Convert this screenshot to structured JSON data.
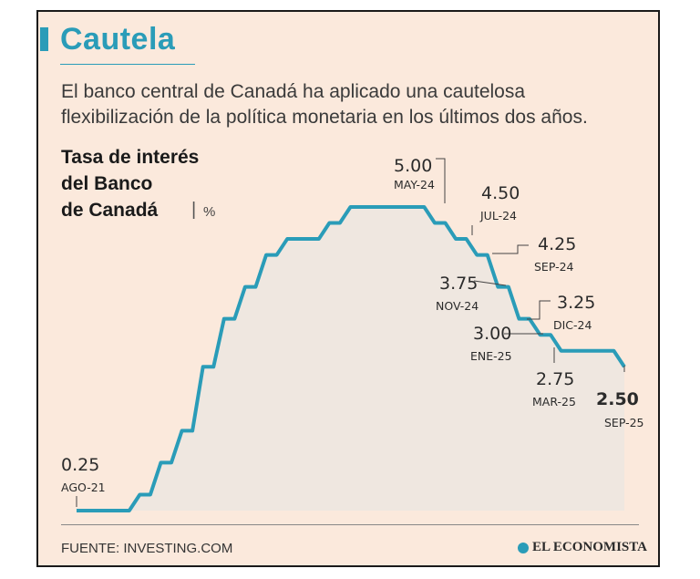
{
  "header": {
    "title": "Cautela",
    "subtitle_line1": "El banco central de Canadá ha aplicado una cautelosa",
    "subtitle_line2": "flexibilización de la política monetaria en los últimos dos años."
  },
  "chart_title": {
    "line1": "Tasa de interés",
    "line2": "del Banco",
    "line3": "de Canadá",
    "separator": "|",
    "unit": "%"
  },
  "footer": {
    "source": "FUENTE: INVESTING.COM",
    "brand": "EL ECONOMISTA"
  },
  "colors": {
    "accent": "#2a9cb8",
    "line": "#2a9cb8",
    "area_fill": "#ece6e1",
    "background": "#fbe9dc"
  },
  "chart_data": {
    "type": "area",
    "series": [
      {
        "values": [
          0.25,
          0.25,
          0.25,
          0.5,
          1.0,
          1.5,
          2.5,
          3.25,
          3.75,
          4.25,
          4.5,
          4.5,
          4.75,
          5.0,
          5.0,
          5.0,
          5.0,
          4.75,
          4.5,
          4.25,
          3.75,
          3.25,
          3.0,
          2.75,
          2.75,
          2.75,
          2.5
        ]
      }
    ],
    "annotations": [
      {
        "value": "0.25",
        "date": "AGO-21"
      },
      {
        "value": "5.00",
        "date": "MAY-24"
      },
      {
        "value": "4.50",
        "date": "JUL-24"
      },
      {
        "value": "4.25",
        "date": "SEP-24"
      },
      {
        "value": "3.75",
        "date": "NOV-24"
      },
      {
        "value": "3.25",
        "date": "DIC-24"
      },
      {
        "value": "3.00",
        "date": "ENE-25"
      },
      {
        "value": "2.75",
        "date": "MAR-25"
      },
      {
        "value": "2.50",
        "date": "SEP-25"
      }
    ],
    "ylim": [
      0,
      5
    ]
  }
}
